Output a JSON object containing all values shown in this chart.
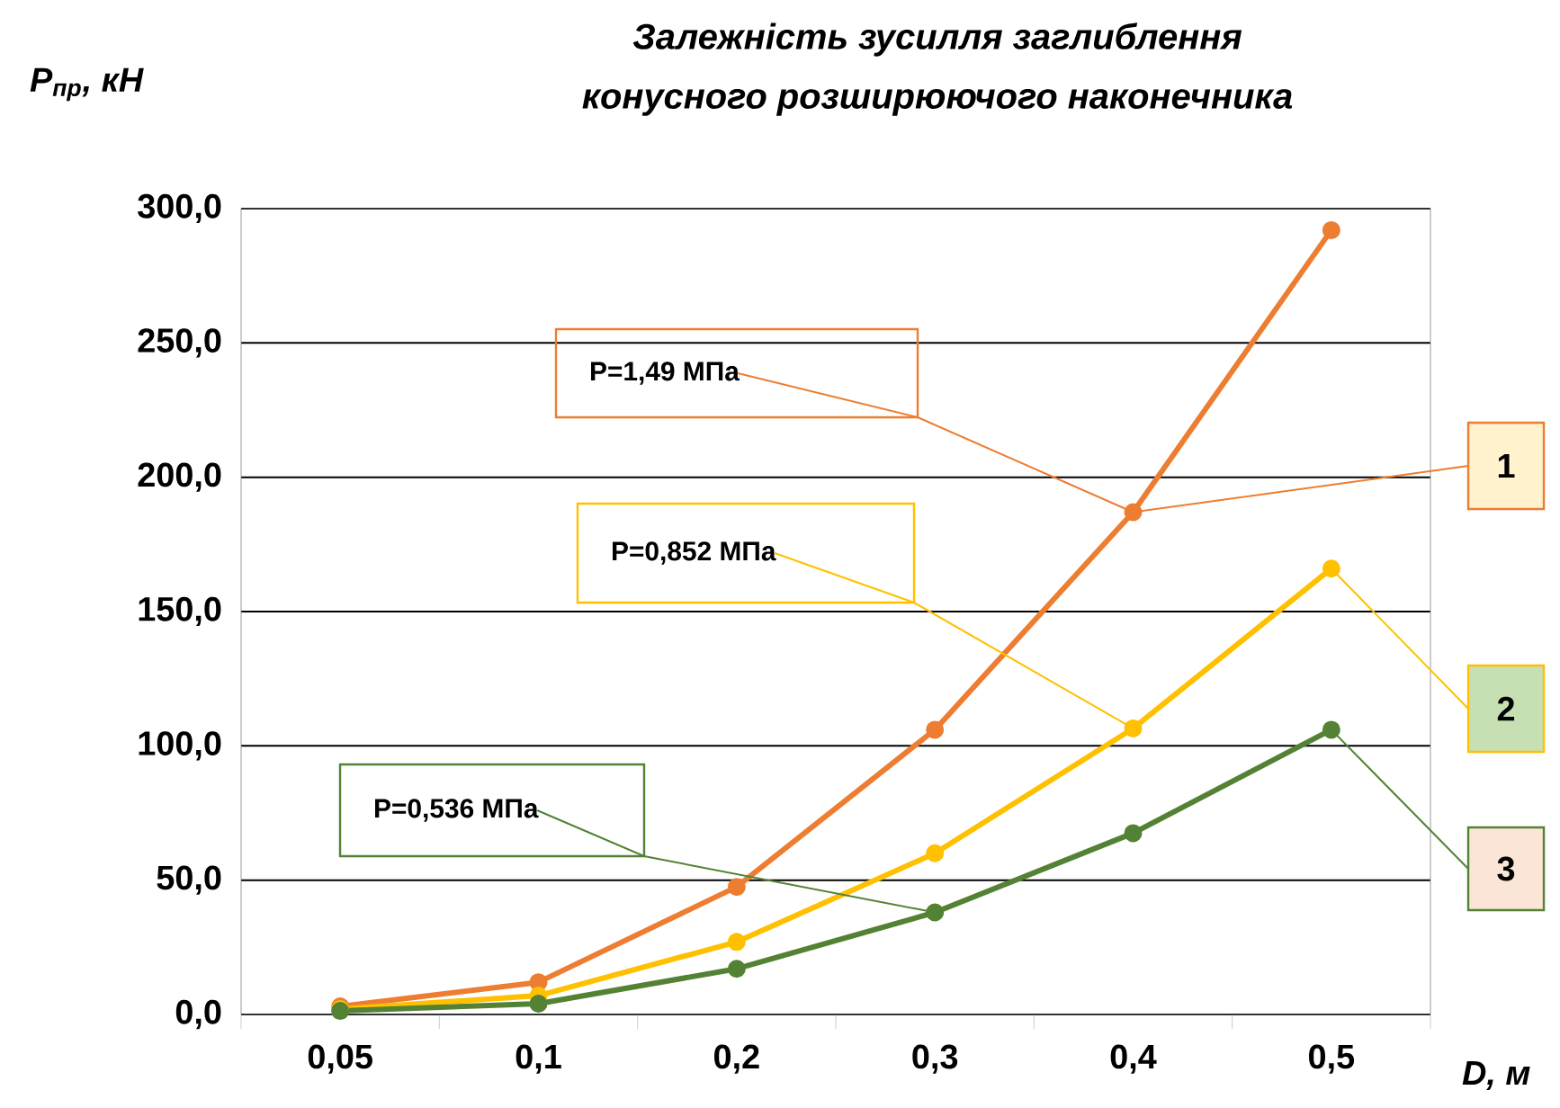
{
  "chart_data": {
    "type": "line",
    "title": "Залежність зусилля заглиблення",
    "subtitle": "конусного розширюючого наконечника",
    "xlabel": "D, м",
    "ylabel": "P$_{пр}$, кН",
    "categories": [
      "0,05",
      "0,1",
      "0,2",
      "0,3",
      "0,4",
      "0,5"
    ],
    "series": [
      {
        "color": "#ed7d31",
        "values": [
          3,
          12,
          47.5,
          106,
          187,
          292
        ]
      },
      {
        "color": "#ffc000",
        "values": [
          2,
          7,
          27,
          60,
          106.5,
          166
        ]
      },
      {
        "color": "#548235",
        "values": [
          1.3,
          4,
          17,
          38,
          67.5,
          106
        ]
      }
    ],
    "ylim": [
      0,
      300
    ],
    "yticks": [
      {
        "value": 0,
        "label": "0,0"
      },
      {
        "value": 50,
        "label": "50,0"
      },
      {
        "value": 100,
        "label": "100,0"
      },
      {
        "value": 150,
        "label": "150,0"
      },
      {
        "value": 200,
        "label": "200,0"
      },
      {
        "value": 250,
        "label": "250,0"
      },
      {
        "value": 300,
        "label": "300,0"
      }
    ],
    "grid": "y",
    "marker": "circle",
    "line_style": "solid",
    "annotations": [
      {
        "text": "P=1,49 МПа",
        "x": "0,4",
        "y": 187
      },
      {
        "text": "P=0,852 МПа",
        "x": "0,4",
        "y": 106.5
      },
      {
        "text": "P=0,536 МПа",
        "x": "0,3",
        "y": 38
      },
      {
        "text": "1",
        "x": "0,4",
        "y": 187
      },
      {
        "text": "2",
        "x": "0,5",
        "y": 166
      },
      {
        "text": "3",
        "x": "0,5",
        "y": 106
      }
    ]
  }
}
